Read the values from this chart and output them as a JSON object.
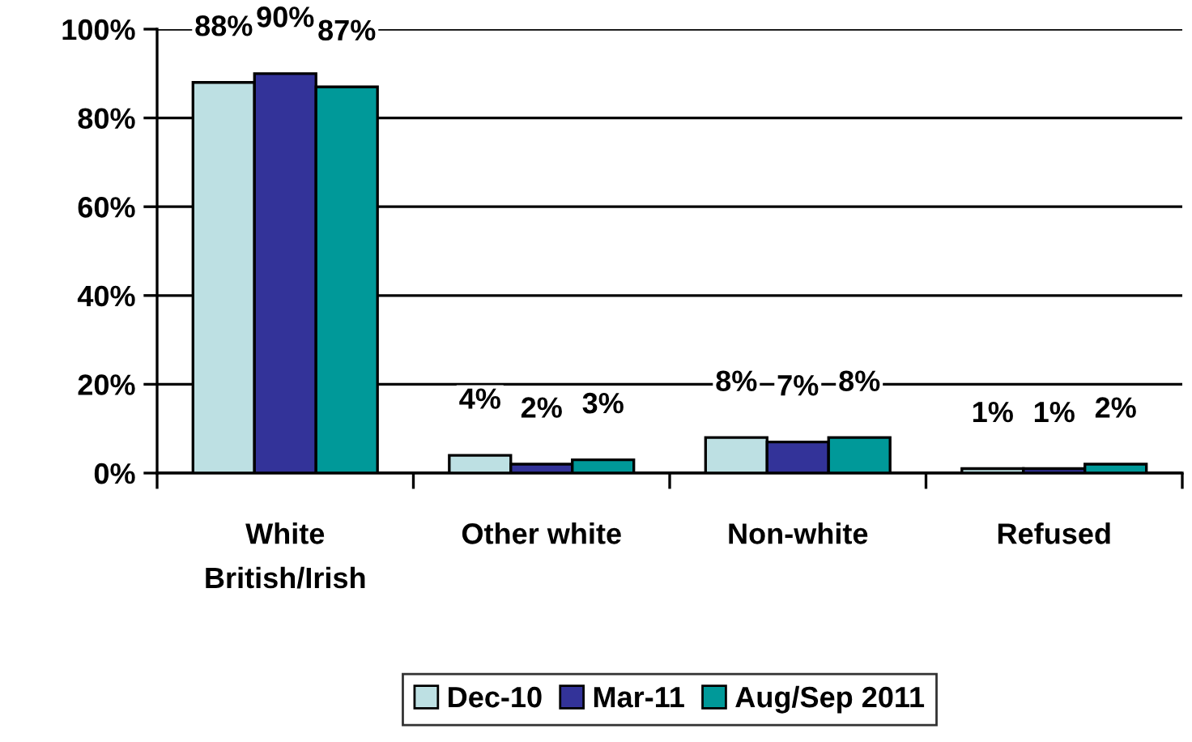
{
  "chart_data": {
    "type": "bar",
    "categories": [
      "White\nBritish/Irish",
      "Other white",
      "Non-white",
      "Refused"
    ],
    "series": [
      {
        "name": "Dec-10",
        "color": "#bde0e3",
        "values": [
          88,
          4,
          8,
          1
        ]
      },
      {
        "name": "Mar-11",
        "color": "#333399",
        "values": [
          90,
          2,
          7,
          1
        ]
      },
      {
        "name": "Aug/Sep 2011",
        "color": "#009999",
        "values": [
          87,
          3,
          8,
          2
        ]
      }
    ],
    "ylim": [
      0,
      100
    ],
    "yticks": [
      {
        "value": 0,
        "label": "0%"
      },
      {
        "value": 20,
        "label": "20%"
      },
      {
        "value": 40,
        "label": "40%"
      },
      {
        "value": 60,
        "label": "60%"
      },
      {
        "value": 80,
        "label": "80%"
      },
      {
        "value": 100,
        "label": "100%"
      }
    ],
    "value_labels": [
      [
        "88%",
        "4%",
        "8%",
        "1%"
      ],
      [
        "90%",
        "2%",
        "7%",
        "1%"
      ],
      [
        "87%",
        "3%",
        "8%",
        "2%"
      ]
    ],
    "grid": "y",
    "legend": "bottom"
  }
}
